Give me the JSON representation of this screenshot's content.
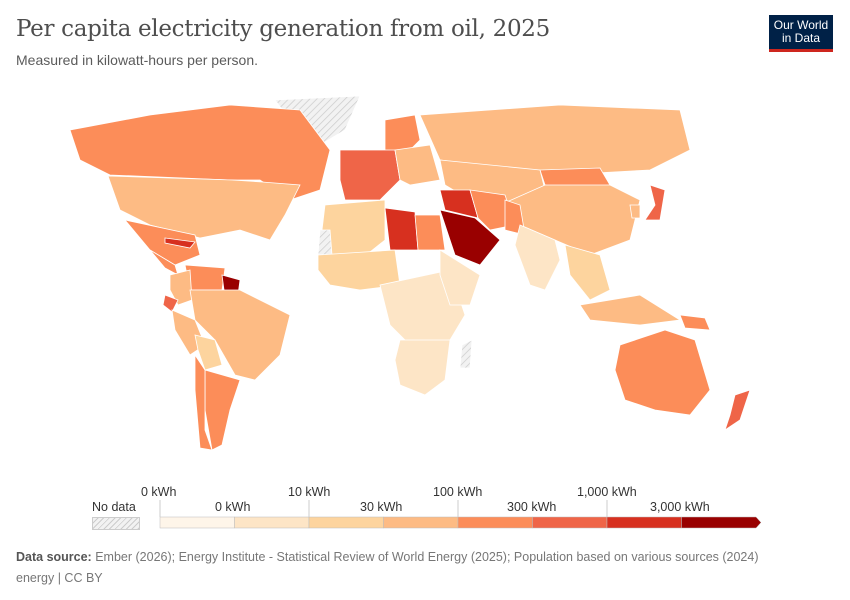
{
  "header": {
    "title": "Per capita electricity generation from oil, 2025",
    "subtitle": "Measured in kilowatt-hours per person.",
    "logo": "Our World in Data"
  },
  "legend": {
    "no_data_label": "No data",
    "upper_labels": [
      "0 kWh",
      "10 kWh",
      "100 kWh",
      "1,000 kWh"
    ],
    "lower_labels": [
      "0 kWh",
      "30 kWh",
      "300 kWh",
      "3,000 kWh"
    ],
    "colors": [
      "#fef5e9",
      "#fde5c6",
      "#fdd49e",
      "#fdbb84",
      "#fc8d59",
      "#ef6548",
      "#d7301f",
      "#990000"
    ],
    "no_data_color": "#e8e8e8"
  },
  "map": {
    "region_bins": {
      "canada": 4,
      "usa": 3,
      "mexico": 4,
      "greenland": -1,
      "cuba": 6,
      "central-america": 4,
      "venezuela": 4,
      "guyana": 7,
      "colombia": 3,
      "ecuador": 5,
      "brazil": 3,
      "peru": 3,
      "bolivia": 2,
      "argentina": 4,
      "chile": 4,
      "scandinavia": 4,
      "western-europe": 5,
      "eastern-europe": 3,
      "russia": 3,
      "mongolia": 4,
      "china": 3,
      "japan": 5,
      "korea": 3,
      "north-africa": 2,
      "libya": 6,
      "egypt": 4,
      "west-africa": 2,
      "central-africa": 1,
      "east-africa": 1,
      "southern-africa": 1,
      "saudi-arabia": 7,
      "iraq-syria": 6,
      "iran": 4,
      "central-asia": 3,
      "pakistan": 4,
      "india": 1,
      "southeast-asia": 2,
      "indonesia": 3,
      "papua-new-guinea": 4,
      "australia": 4,
      "new-zealand": 5,
      "madagascar": -1,
      "western-sahara": -1
    }
  },
  "footer": {
    "source_label": "Data source:",
    "source_text": " Ember (2026); Energy Institute - Statistical Review of World Energy (2025); Population based on various sources (2024)",
    "license": "energy | CC BY"
  }
}
